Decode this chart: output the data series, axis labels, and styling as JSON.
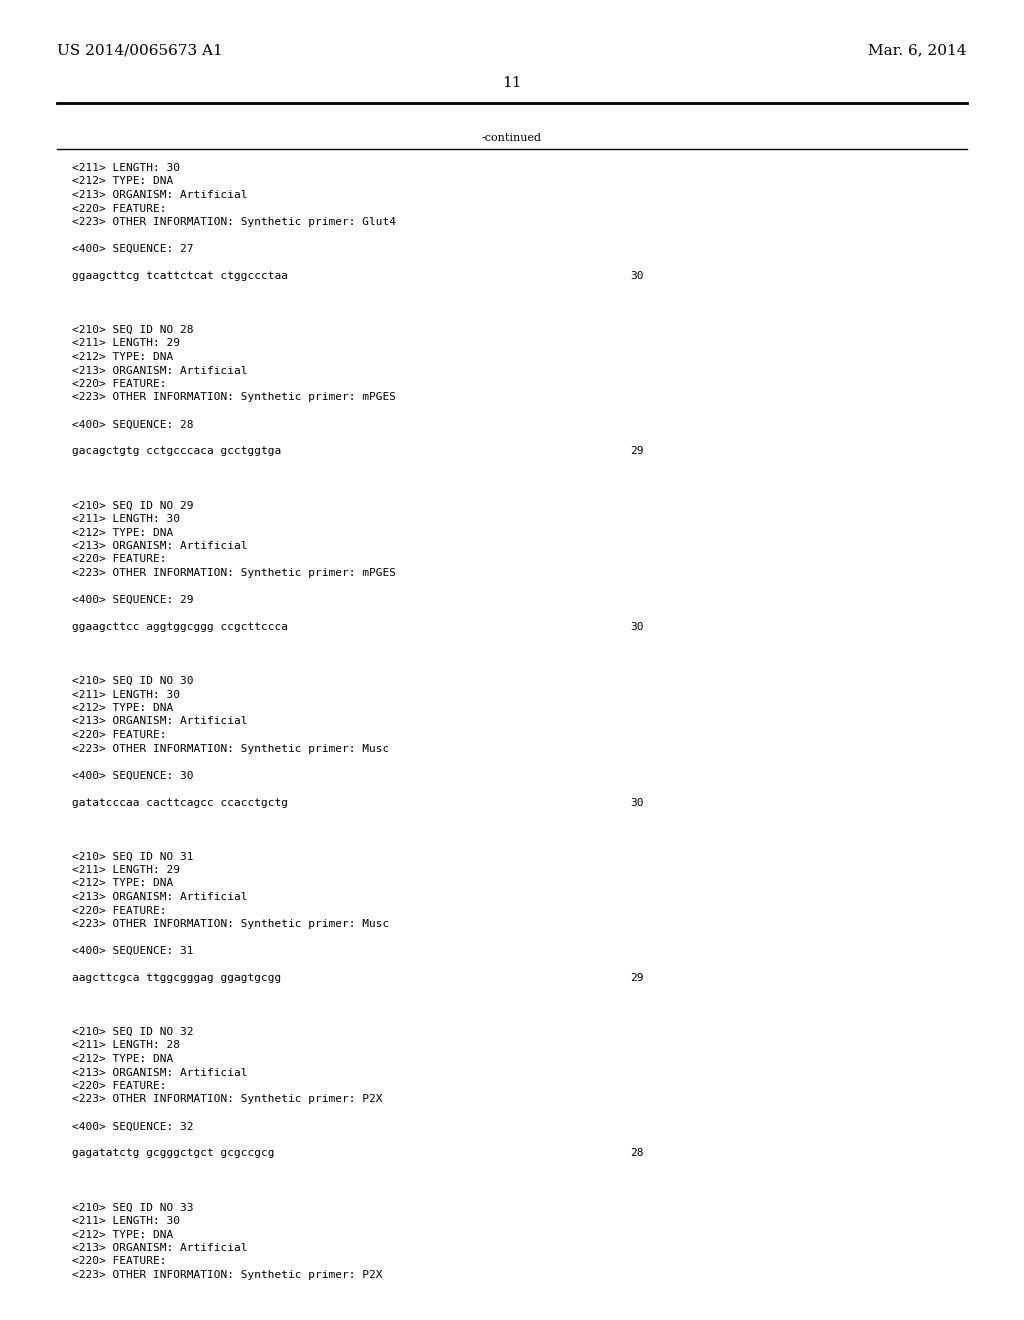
{
  "background_color": "#ffffff",
  "header_left": "US 2014/0065673 A1",
  "header_right": "Mar. 6, 2014",
  "page_number": "11",
  "continued_text": "-continued",
  "font_size_header": 11,
  "font_size_body": 8.0,
  "content": [
    {
      "type": "meta",
      "lines": [
        "<211> LENGTH: 30",
        "<212> TYPE: DNA",
        "<213> ORGANISM: Artificial",
        "<220> FEATURE:",
        "<223> OTHER INFORMATION: Synthetic primer: Glut4"
      ]
    },
    {
      "type": "blank"
    },
    {
      "type": "sequence_label",
      "text": "<400> SEQUENCE: 27"
    },
    {
      "type": "blank"
    },
    {
      "type": "sequence",
      "seq": "ggaagcttcg tcattctcat ctggccctaa",
      "length": "30"
    },
    {
      "type": "blank"
    },
    {
      "type": "blank"
    },
    {
      "type": "blank"
    },
    {
      "type": "seq_id",
      "text": "<210> SEQ ID NO 28"
    },
    {
      "type": "meta",
      "lines": [
        "<211> LENGTH: 29",
        "<212> TYPE: DNA",
        "<213> ORGANISM: Artificial",
        "<220> FEATURE:",
        "<223> OTHER INFORMATION: Synthetic primer: mPGES"
      ]
    },
    {
      "type": "blank"
    },
    {
      "type": "sequence_label",
      "text": "<400> SEQUENCE: 28"
    },
    {
      "type": "blank"
    },
    {
      "type": "sequence",
      "seq": "gacagctgtg cctgcccaca gcctggtga",
      "length": "29"
    },
    {
      "type": "blank"
    },
    {
      "type": "blank"
    },
    {
      "type": "blank"
    },
    {
      "type": "seq_id",
      "text": "<210> SEQ ID NO 29"
    },
    {
      "type": "meta",
      "lines": [
        "<211> LENGTH: 30",
        "<212> TYPE: DNA",
        "<213> ORGANISM: Artificial",
        "<220> FEATURE:",
        "<223> OTHER INFORMATION: Synthetic primer: mPGES"
      ]
    },
    {
      "type": "blank"
    },
    {
      "type": "sequence_label",
      "text": "<400> SEQUENCE: 29"
    },
    {
      "type": "blank"
    },
    {
      "type": "sequence",
      "seq": "ggaagcttcc aggtggcggg ccgcttccca",
      "length": "30"
    },
    {
      "type": "blank"
    },
    {
      "type": "blank"
    },
    {
      "type": "blank"
    },
    {
      "type": "seq_id",
      "text": "<210> SEQ ID NO 30"
    },
    {
      "type": "meta",
      "lines": [
        "<211> LENGTH: 30",
        "<212> TYPE: DNA",
        "<213> ORGANISM: Artificial",
        "<220> FEATURE:",
        "<223> OTHER INFORMATION: Synthetic primer: Musc"
      ]
    },
    {
      "type": "blank"
    },
    {
      "type": "sequence_label",
      "text": "<400> SEQUENCE: 30"
    },
    {
      "type": "blank"
    },
    {
      "type": "sequence",
      "seq": "gatatcccaa cacttcagcc ccacctgctg",
      "length": "30"
    },
    {
      "type": "blank"
    },
    {
      "type": "blank"
    },
    {
      "type": "blank"
    },
    {
      "type": "seq_id",
      "text": "<210> SEQ ID NO 31"
    },
    {
      "type": "meta",
      "lines": [
        "<211> LENGTH: 29",
        "<212> TYPE: DNA",
        "<213> ORGANISM: Artificial",
        "<220> FEATURE:",
        "<223> OTHER INFORMATION: Synthetic primer: Musc"
      ]
    },
    {
      "type": "blank"
    },
    {
      "type": "sequence_label",
      "text": "<400> SEQUENCE: 31"
    },
    {
      "type": "blank"
    },
    {
      "type": "sequence",
      "seq": "aagcttcgca ttggcgggag ggagtgcgg",
      "length": "29"
    },
    {
      "type": "blank"
    },
    {
      "type": "blank"
    },
    {
      "type": "blank"
    },
    {
      "type": "seq_id",
      "text": "<210> SEQ ID NO 32"
    },
    {
      "type": "meta",
      "lines": [
        "<211> LENGTH: 28",
        "<212> TYPE: DNA",
        "<213> ORGANISM: Artificial",
        "<220> FEATURE:",
        "<223> OTHER INFORMATION: Synthetic primer: P2X"
      ]
    },
    {
      "type": "blank"
    },
    {
      "type": "sequence_label",
      "text": "<400> SEQUENCE: 32"
    },
    {
      "type": "blank"
    },
    {
      "type": "sequence",
      "seq": "gagatatctg gcgggctgct gcgccgcg",
      "length": "28"
    },
    {
      "type": "blank"
    },
    {
      "type": "blank"
    },
    {
      "type": "blank"
    },
    {
      "type": "seq_id",
      "text": "<210> SEQ ID NO 33"
    },
    {
      "type": "meta",
      "lines": [
        "<211> LENGTH: 30",
        "<212> TYPE: DNA",
        "<213> ORGANISM: Artificial",
        "<220> FEATURE:",
        "<223> OTHER INFORMATION: Synthetic primer: P2X"
      ]
    }
  ]
}
